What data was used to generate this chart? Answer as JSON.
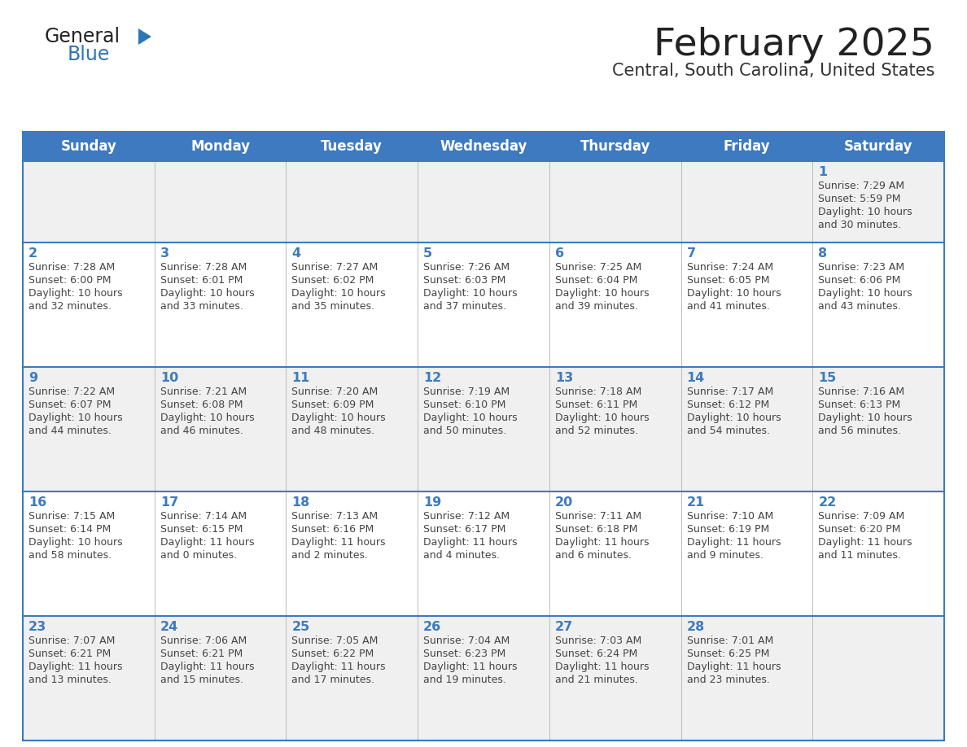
{
  "title": "February 2025",
  "subtitle": "Central, South Carolina, United States",
  "days_of_week": [
    "Sunday",
    "Monday",
    "Tuesday",
    "Wednesday",
    "Thursday",
    "Friday",
    "Saturday"
  ],
  "header_bg": "#3d7abf",
  "header_text_color": "#FFFFFF",
  "cell_bg_even": "#F0F0F0",
  "cell_bg_odd": "#FFFFFF",
  "cell_border_color": "#3d7abf",
  "day_number_color": "#3d7abf",
  "text_color": "#444444",
  "title_color": "#222222",
  "subtitle_color": "#333333",
  "logo_general_color": "#222222",
  "logo_blue_color": "#2E75B6",
  "calendar_data": [
    {
      "day": 1,
      "row": 0,
      "col": 6,
      "sunrise": "7:29 AM",
      "sunset": "5:59 PM",
      "daylight_line1": "Daylight: 10 hours",
      "daylight_line2": "and 30 minutes."
    },
    {
      "day": 2,
      "row": 1,
      "col": 0,
      "sunrise": "7:28 AM",
      "sunset": "6:00 PM",
      "daylight_line1": "Daylight: 10 hours",
      "daylight_line2": "and 32 minutes."
    },
    {
      "day": 3,
      "row": 1,
      "col": 1,
      "sunrise": "7:28 AM",
      "sunset": "6:01 PM",
      "daylight_line1": "Daylight: 10 hours",
      "daylight_line2": "and 33 minutes."
    },
    {
      "day": 4,
      "row": 1,
      "col": 2,
      "sunrise": "7:27 AM",
      "sunset": "6:02 PM",
      "daylight_line1": "Daylight: 10 hours",
      "daylight_line2": "and 35 minutes."
    },
    {
      "day": 5,
      "row": 1,
      "col": 3,
      "sunrise": "7:26 AM",
      "sunset": "6:03 PM",
      "daylight_line1": "Daylight: 10 hours",
      "daylight_line2": "and 37 minutes."
    },
    {
      "day": 6,
      "row": 1,
      "col": 4,
      "sunrise": "7:25 AM",
      "sunset": "6:04 PM",
      "daylight_line1": "Daylight: 10 hours",
      "daylight_line2": "and 39 minutes."
    },
    {
      "day": 7,
      "row": 1,
      "col": 5,
      "sunrise": "7:24 AM",
      "sunset": "6:05 PM",
      "daylight_line1": "Daylight: 10 hours",
      "daylight_line2": "and 41 minutes."
    },
    {
      "day": 8,
      "row": 1,
      "col": 6,
      "sunrise": "7:23 AM",
      "sunset": "6:06 PM",
      "daylight_line1": "Daylight: 10 hours",
      "daylight_line2": "and 43 minutes."
    },
    {
      "day": 9,
      "row": 2,
      "col": 0,
      "sunrise": "7:22 AM",
      "sunset": "6:07 PM",
      "daylight_line1": "Daylight: 10 hours",
      "daylight_line2": "and 44 minutes."
    },
    {
      "day": 10,
      "row": 2,
      "col": 1,
      "sunrise": "7:21 AM",
      "sunset": "6:08 PM",
      "daylight_line1": "Daylight: 10 hours",
      "daylight_line2": "and 46 minutes."
    },
    {
      "day": 11,
      "row": 2,
      "col": 2,
      "sunrise": "7:20 AM",
      "sunset": "6:09 PM",
      "daylight_line1": "Daylight: 10 hours",
      "daylight_line2": "and 48 minutes."
    },
    {
      "day": 12,
      "row": 2,
      "col": 3,
      "sunrise": "7:19 AM",
      "sunset": "6:10 PM",
      "daylight_line1": "Daylight: 10 hours",
      "daylight_line2": "and 50 minutes."
    },
    {
      "day": 13,
      "row": 2,
      "col": 4,
      "sunrise": "7:18 AM",
      "sunset": "6:11 PM",
      "daylight_line1": "Daylight: 10 hours",
      "daylight_line2": "and 52 minutes."
    },
    {
      "day": 14,
      "row": 2,
      "col": 5,
      "sunrise": "7:17 AM",
      "sunset": "6:12 PM",
      "daylight_line1": "Daylight: 10 hours",
      "daylight_line2": "and 54 minutes."
    },
    {
      "day": 15,
      "row": 2,
      "col": 6,
      "sunrise": "7:16 AM",
      "sunset": "6:13 PM",
      "daylight_line1": "Daylight: 10 hours",
      "daylight_line2": "and 56 minutes."
    },
    {
      "day": 16,
      "row": 3,
      "col": 0,
      "sunrise": "7:15 AM",
      "sunset": "6:14 PM",
      "daylight_line1": "Daylight: 10 hours",
      "daylight_line2": "and 58 minutes."
    },
    {
      "day": 17,
      "row": 3,
      "col": 1,
      "sunrise": "7:14 AM",
      "sunset": "6:15 PM",
      "daylight_line1": "Daylight: 11 hours",
      "daylight_line2": "and 0 minutes."
    },
    {
      "day": 18,
      "row": 3,
      "col": 2,
      "sunrise": "7:13 AM",
      "sunset": "6:16 PM",
      "daylight_line1": "Daylight: 11 hours",
      "daylight_line2": "and 2 minutes."
    },
    {
      "day": 19,
      "row": 3,
      "col": 3,
      "sunrise": "7:12 AM",
      "sunset": "6:17 PM",
      "daylight_line1": "Daylight: 11 hours",
      "daylight_line2": "and 4 minutes."
    },
    {
      "day": 20,
      "row": 3,
      "col": 4,
      "sunrise": "7:11 AM",
      "sunset": "6:18 PM",
      "daylight_line1": "Daylight: 11 hours",
      "daylight_line2": "and 6 minutes."
    },
    {
      "day": 21,
      "row": 3,
      "col": 5,
      "sunrise": "7:10 AM",
      "sunset": "6:19 PM",
      "daylight_line1": "Daylight: 11 hours",
      "daylight_line2": "and 9 minutes."
    },
    {
      "day": 22,
      "row": 3,
      "col": 6,
      "sunrise": "7:09 AM",
      "sunset": "6:20 PM",
      "daylight_line1": "Daylight: 11 hours",
      "daylight_line2": "and 11 minutes."
    },
    {
      "day": 23,
      "row": 4,
      "col": 0,
      "sunrise": "7:07 AM",
      "sunset": "6:21 PM",
      "daylight_line1": "Daylight: 11 hours",
      "daylight_line2": "and 13 minutes."
    },
    {
      "day": 24,
      "row": 4,
      "col": 1,
      "sunrise": "7:06 AM",
      "sunset": "6:21 PM",
      "daylight_line1": "Daylight: 11 hours",
      "daylight_line2": "and 15 minutes."
    },
    {
      "day": 25,
      "row": 4,
      "col": 2,
      "sunrise": "7:05 AM",
      "sunset": "6:22 PM",
      "daylight_line1": "Daylight: 11 hours",
      "daylight_line2": "and 17 minutes."
    },
    {
      "day": 26,
      "row": 4,
      "col": 3,
      "sunrise": "7:04 AM",
      "sunset": "6:23 PM",
      "daylight_line1": "Daylight: 11 hours",
      "daylight_line2": "and 19 minutes."
    },
    {
      "day": 27,
      "row": 4,
      "col": 4,
      "sunrise": "7:03 AM",
      "sunset": "6:24 PM",
      "daylight_line1": "Daylight: 11 hours",
      "daylight_line2": "and 21 minutes."
    },
    {
      "day": 28,
      "row": 4,
      "col": 5,
      "sunrise": "7:01 AM",
      "sunset": "6:25 PM",
      "daylight_line1": "Daylight: 11 hours",
      "daylight_line2": "and 23 minutes."
    }
  ],
  "num_rows": 5,
  "num_cols": 7,
  "fig_width": 11.88,
  "fig_height": 9.18,
  "dpi": 100
}
